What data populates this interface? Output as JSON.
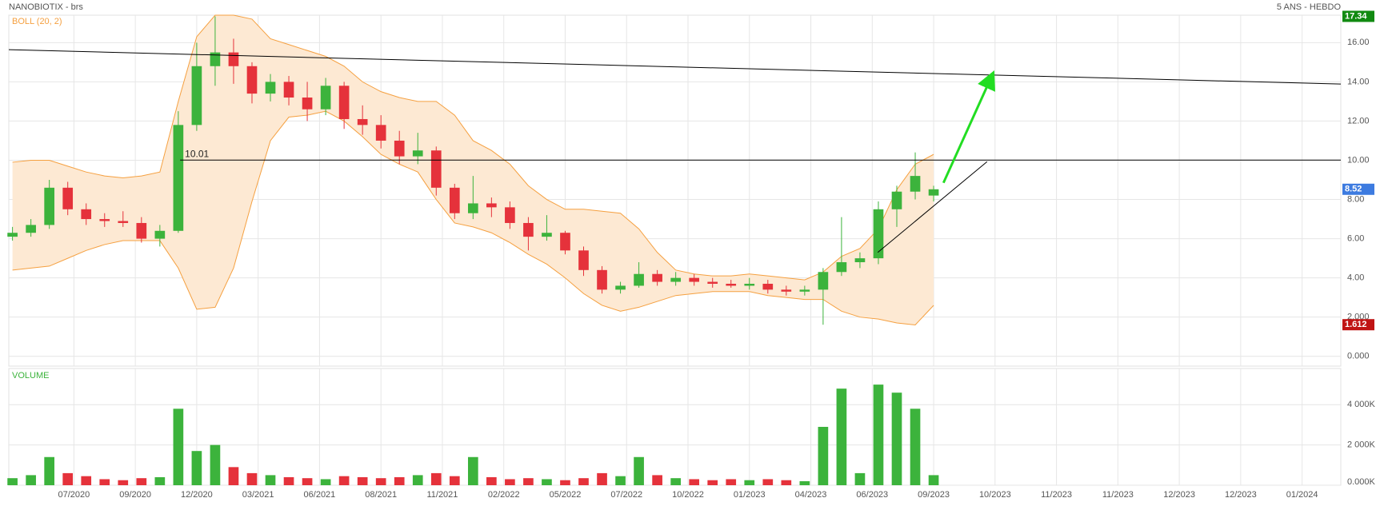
{
  "chart_data": {
    "type": "candlestick",
    "title": "NANOBIOTIX - brs",
    "subtitle": "5 ANS - HEBDO",
    "up_color": "#3cb33c",
    "down_color": "#e5323b",
    "grid": true,
    "xlim": [
      -0.6,
      216.3
    ],
    "xticks": [
      {
        "value": 10,
        "label": "07/2020"
      },
      {
        "value": 20,
        "label": "09/2020"
      },
      {
        "value": 30,
        "label": "12/2020"
      },
      {
        "value": 40,
        "label": "03/2021"
      },
      {
        "value": 50,
        "label": "06/2021"
      },
      {
        "value": 60,
        "label": "08/2021"
      },
      {
        "value": 70,
        "label": "11/2021"
      },
      {
        "value": 80,
        "label": "02/2022"
      },
      {
        "value": 90,
        "label": "05/2022"
      },
      {
        "value": 100,
        "label": "07/2022"
      },
      {
        "value": 110,
        "label": "10/2022"
      },
      {
        "value": 120,
        "label": "01/2023"
      },
      {
        "value": 130,
        "label": "04/2023"
      },
      {
        "value": 140,
        "label": "06/2023"
      },
      {
        "value": 150,
        "label": "09/2023"
      },
      {
        "value": 160,
        "label": "10/2023"
      },
      {
        "value": 170,
        "label": "11/2023"
      },
      {
        "value": 180,
        "label": "11/2023"
      },
      {
        "value": 190,
        "label": "12/2023"
      },
      {
        "value": 200,
        "label": "12/2023"
      },
      {
        "value": 210,
        "label": "01/2024"
      }
    ],
    "ylim": [
      -0.5,
      17.4
    ],
    "yticks": [
      {
        "value": 0,
        "label": "0.000"
      },
      {
        "value": 2,
        "label": "2.000"
      },
      {
        "value": 4,
        "label": "4.00"
      },
      {
        "value": 6,
        "label": "6.00"
      },
      {
        "value": 8,
        "label": "8.00"
      },
      {
        "value": 10,
        "label": "10.00"
      },
      {
        "value": 12,
        "label": "12.00"
      },
      {
        "value": 14,
        "label": "14.00"
      },
      {
        "value": 16,
        "label": "16.00"
      }
    ],
    "x": [
      0,
      3,
      6,
      9,
      12,
      15,
      18,
      21,
      24,
      27,
      30,
      33,
      36,
      39,
      42,
      45,
      48,
      51,
      54,
      57,
      60,
      63,
      66,
      69,
      72,
      75,
      78,
      81,
      84,
      87,
      90,
      93,
      96,
      99,
      102,
      105,
      108,
      111,
      114,
      117,
      120,
      123,
      126,
      129,
      132,
      135,
      138,
      141,
      144,
      147,
      150
    ],
    "ohlc": [
      [
        6.1,
        6.6,
        5.9,
        6.3
      ],
      [
        6.3,
        7.0,
        6.1,
        6.7
      ],
      [
        6.7,
        9.0,
        6.5,
        8.6
      ],
      [
        8.6,
        8.9,
        7.2,
        7.5
      ],
      [
        7.5,
        7.8,
        6.7,
        7.0
      ],
      [
        7.0,
        7.3,
        6.6,
        6.9
      ],
      [
        6.9,
        7.4,
        6.6,
        6.8
      ],
      [
        6.8,
        7.1,
        5.8,
        6.0
      ],
      [
        6.0,
        6.7,
        5.6,
        6.4
      ],
      [
        6.4,
        12.5,
        6.3,
        11.8
      ],
      [
        11.8,
        16.0,
        11.5,
        14.8
      ],
      [
        14.8,
        17.34,
        13.8,
        15.5
      ],
      [
        15.5,
        16.2,
        13.9,
        14.8
      ],
      [
        14.8,
        15.0,
        12.9,
        13.4
      ],
      [
        13.4,
        14.4,
        13.0,
        14.0
      ],
      [
        14.0,
        14.3,
        12.8,
        13.2
      ],
      [
        13.2,
        14.0,
        12.0,
        12.6
      ],
      [
        12.6,
        14.2,
        12.3,
        13.8
      ],
      [
        13.8,
        14.0,
        11.6,
        12.1
      ],
      [
        12.1,
        12.8,
        11.3,
        11.8
      ],
      [
        11.8,
        12.3,
        10.6,
        11.0
      ],
      [
        11.0,
        11.5,
        9.8,
        10.2
      ],
      [
        10.2,
        11.4,
        9.8,
        10.5
      ],
      [
        10.5,
        10.7,
        8.2,
        8.6
      ],
      [
        8.6,
        8.8,
        7.0,
        7.3
      ],
      [
        7.3,
        9.2,
        7.0,
        7.8
      ],
      [
        7.8,
        8.1,
        7.1,
        7.6
      ],
      [
        7.6,
        7.9,
        6.5,
        6.8
      ],
      [
        6.8,
        7.1,
        5.4,
        6.1
      ],
      [
        6.1,
        7.2,
        5.9,
        6.3
      ],
      [
        6.3,
        6.4,
        5.2,
        5.4
      ],
      [
        5.4,
        5.6,
        4.1,
        4.4
      ],
      [
        4.4,
        4.6,
        3.2,
        3.4
      ],
      [
        3.4,
        3.8,
        3.2,
        3.6
      ],
      [
        3.6,
        4.8,
        3.5,
        4.2
      ],
      [
        4.2,
        4.4,
        3.6,
        3.8
      ],
      [
        3.8,
        4.3,
        3.6,
        4.0
      ],
      [
        4.0,
        4.2,
        3.6,
        3.8
      ],
      [
        3.8,
        4.0,
        3.5,
        3.7
      ],
      [
        3.7,
        3.9,
        3.5,
        3.6
      ],
      [
        3.6,
        4.0,
        3.4,
        3.7
      ],
      [
        3.7,
        3.9,
        3.2,
        3.4
      ],
      [
        3.4,
        3.6,
        3.1,
        3.3
      ],
      [
        3.3,
        3.6,
        3.1,
        3.4
      ],
      [
        3.4,
        4.5,
        1.612,
        4.3
      ],
      [
        4.3,
        7.1,
        4.1,
        4.8
      ],
      [
        4.8,
        5.3,
        4.5,
        5.0
      ],
      [
        5.0,
        7.9,
        4.7,
        7.5
      ],
      [
        7.5,
        8.7,
        6.6,
        8.4
      ],
      [
        8.4,
        10.4,
        8.0,
        9.2
      ],
      [
        8.2,
        8.7,
        7.9,
        8.52
      ]
    ],
    "bollinger": {
      "name": "BOLL (20, 2)",
      "color": "#f5a040",
      "fill": "#fde9d3",
      "upper": [
        9.9,
        10.0,
        10.0,
        9.7,
        9.4,
        9.2,
        9.1,
        9.2,
        9.4,
        13.0,
        16.3,
        17.4,
        17.4,
        17.2,
        16.2,
        15.9,
        15.6,
        15.3,
        14.8,
        14.0,
        13.5,
        13.2,
        13.0,
        13.0,
        12.3,
        11.0,
        10.5,
        9.8,
        8.7,
        8.0,
        7.5,
        7.5,
        7.4,
        7.3,
        6.5,
        5.3,
        4.4,
        4.2,
        4.1,
        4.1,
        4.2,
        4.1,
        4.0,
        3.9,
        4.3,
        5.1,
        5.5,
        6.5,
        8.5,
        9.8,
        10.3
      ],
      "lower": [
        4.4,
        4.5,
        4.6,
        5.0,
        5.4,
        5.7,
        5.9,
        5.9,
        5.9,
        4.5,
        2.4,
        2.5,
        4.5,
        7.9,
        11.0,
        12.2,
        12.3,
        12.5,
        12.0,
        11.2,
        10.3,
        9.8,
        9.4,
        8.0,
        6.8,
        6.6,
        6.3,
        5.8,
        5.2,
        4.7,
        4.0,
        3.2,
        2.6,
        2.3,
        2.5,
        2.8,
        3.1,
        3.2,
        3.3,
        3.3,
        3.3,
        3.1,
        3.0,
        2.9,
        2.9,
        2.3,
        2.0,
        1.9,
        1.7,
        1.6,
        2.6
      ]
    },
    "volume": {
      "name": "VOLUME",
      "values": [
        350,
        500,
        1400,
        600,
        450,
        300,
        250,
        350,
        400,
        3800,
        1700,
        2000,
        900,
        600,
        500,
        400,
        350,
        300,
        450,
        400,
        350,
        400,
        500,
        600,
        450,
        1400,
        400,
        300,
        350,
        300,
        250,
        350,
        600,
        450,
        1400,
        500,
        350,
        300,
        250,
        300,
        250,
        300,
        250,
        200,
        2900,
        4800,
        600,
        5000,
        4600,
        3800,
        500
      ],
      "ylim": [
        0,
        5800
      ],
      "yticks": [
        {
          "value": 0,
          "label": "0.000K"
        },
        {
          "value": 2000,
          "label": "2 000K"
        },
        {
          "value": 4000,
          "label": "4 000K"
        }
      ]
    },
    "drawings": [
      {
        "x": [
          -0.6,
          216.3
        ],
        "y": [
          15.64,
          13.89
        ],
        "color": "#000000"
      },
      {
        "x": [
          27.3,
          216.3
        ],
        "y": [
          10.01,
          10.01
        ],
        "color": "#000000",
        "labeled": true
      },
      {
        "x": [
          140.9,
          158.7
        ],
        "y": [
          5.3,
          9.93
        ],
        "color": "#000000"
      },
      {
        "x": [
          151.6,
          159.4
        ],
        "y": [
          8.85,
          14.25
        ],
        "color": "#22dd22",
        "arrow": true
      }
    ],
    "price_markers": [
      {
        "value": 17.34,
        "color": "#118a11"
      },
      {
        "value": 8.52,
        "color": "#3d7be0"
      },
      {
        "value": 1.612,
        "color": "#c01414"
      }
    ]
  }
}
